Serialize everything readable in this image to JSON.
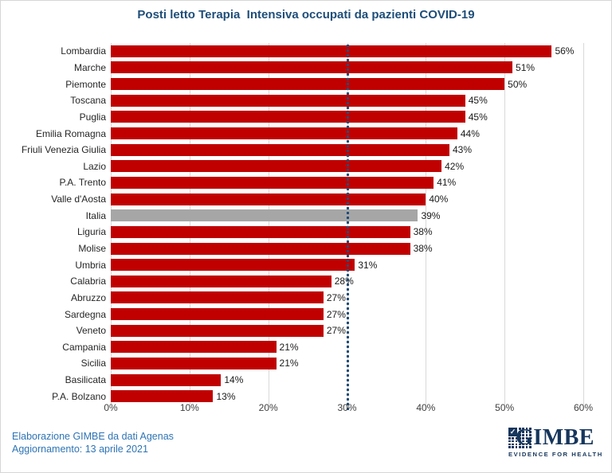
{
  "title": "Posti letto Terapia  Intensiva occupati da pazienti COVID-19",
  "chart_data": {
    "type": "bar",
    "orientation": "horizontal",
    "categories": [
      "Lombardia",
      "Marche",
      "Piemonte",
      "Toscana",
      "Puglia",
      "Emilia Romagna",
      "Friuli Venezia Giulia",
      "Lazio",
      "P.A. Trento",
      "Valle d'Aosta",
      "Italia",
      "Liguria",
      "Molise",
      "Umbria",
      "Calabria",
      "Abruzzo",
      "Sardegna",
      "Veneto",
      "Campania",
      "Sicilia",
      "Basilicata",
      "P.A. Bolzano"
    ],
    "values": [
      56,
      51,
      50,
      45,
      45,
      44,
      43,
      42,
      41,
      40,
      39,
      38,
      38,
      31,
      28,
      27,
      27,
      27,
      21,
      21,
      14,
      13
    ],
    "unit": "%",
    "xlim": [
      0,
      60
    ],
    "xtick_values": [
      0,
      10,
      20,
      30,
      40,
      50,
      60
    ],
    "xticks": [
      "0%",
      "10%",
      "20%",
      "30%",
      "40%",
      "50%",
      "60%"
    ],
    "bar_color": "#C00000",
    "highlight_category": "Italia",
    "highlight_color": "#A6A6A6",
    "gridline_color": "#D9D9D9",
    "reference_line": {
      "value": 30,
      "style": "dotted",
      "color": "#1F4E79"
    },
    "value_labels": true,
    "legend": "none",
    "grid": "vertical"
  },
  "colors": {
    "title": "#1F4E79",
    "footer_text": "#2E74B5",
    "logo_navy": "#16365C",
    "background": "#FFFFFF"
  },
  "footer": {
    "source": "Elaborazione GIMBE da dati Agenas",
    "update": "Aggiornamento: 13 aprile 2021"
  },
  "logo": {
    "icon": "gimbe-checker-grid-icon",
    "name": "GIMBE",
    "tagline": "EVIDENCE FOR HEALTH"
  }
}
